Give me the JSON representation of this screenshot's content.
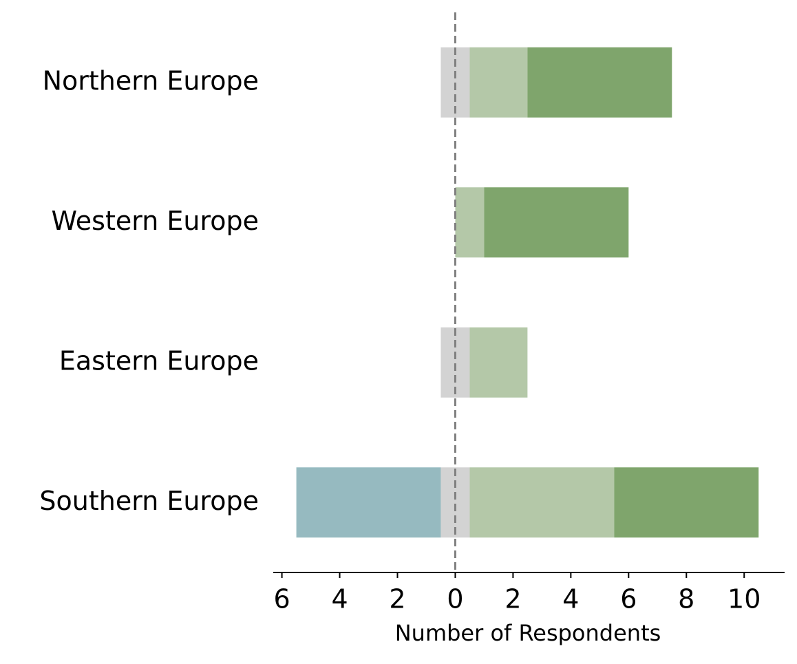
{
  "chart_data": {
    "type": "diverging-bar",
    "categories": [
      "Northern Europe",
      "Western Europe",
      "Eastern Europe",
      "Southern Europe"
    ],
    "series": [
      {
        "color": "#96bac0",
        "side": "negative",
        "values": [
          0,
          0,
          0,
          5
        ]
      },
      {
        "color": "#d3d3d3",
        "side": "center",
        "values": [
          1,
          0,
          1,
          1
        ]
      },
      {
        "color": "#b4c8a8",
        "side": "positive",
        "values": [
          2,
          1,
          2,
          5
        ]
      },
      {
        "color": "#7fa56c",
        "side": "positive",
        "values": [
          5,
          5,
          0,
          5
        ]
      }
    ],
    "x_label": "Number of Respondents",
    "xlim": [
      -6.3,
      11.4
    ],
    "xticks": [
      {
        "value": -6,
        "label": "6"
      },
      {
        "value": -4,
        "label": "4"
      },
      {
        "value": -2,
        "label": "2"
      },
      0,
      2,
      4,
      6,
      8,
      10
    ],
    "zero_line": true
  }
}
